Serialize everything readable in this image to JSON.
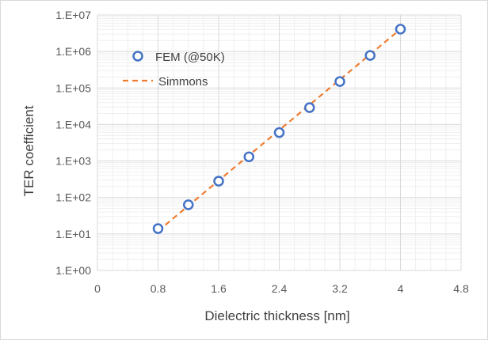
{
  "chart_data": {
    "type": "scatter",
    "xlabel": "Dielectric thickness [nm]",
    "ylabel": "TER coefficient",
    "xlim": [
      0,
      4.8
    ],
    "x_ticks": [
      "0",
      "0.8",
      "1.6",
      "2.4",
      "3.2",
      "4",
      "4.8"
    ],
    "y_scale": "log",
    "ylim": [
      1,
      10000000
    ],
    "y_ticks": [
      "1.E+00",
      "1.E+01",
      "1.E+02",
      "1.E+03",
      "1.E+04",
      "1.E+05",
      "1.E+06",
      "1.E+07"
    ],
    "grid": "on (major and minor)",
    "legend_position": "top-left",
    "series": [
      {
        "name": "FEM (@50K)",
        "kind": "marker",
        "color": "#4472c4",
        "x": [
          0.8,
          1.2,
          1.6,
          2.0,
          2.4,
          2.8,
          3.2,
          3.6,
          4.0
        ],
        "y": [
          14,
          63,
          280,
          1300,
          6000,
          29000,
          150000,
          780000,
          4100000
        ]
      },
      {
        "name": "Simmons",
        "kind": "dashed-line",
        "color": "#ed7d31",
        "x": [
          0.8,
          4.0
        ],
        "y": [
          12,
          4100000
        ]
      }
    ]
  }
}
